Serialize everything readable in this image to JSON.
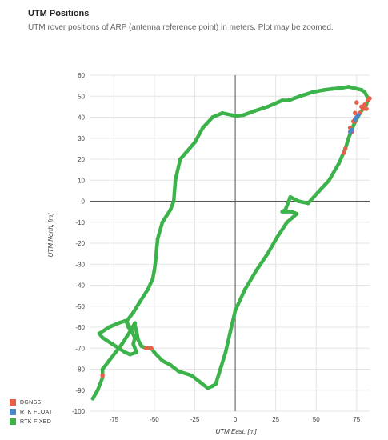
{
  "header": {
    "title": "UTM Positions",
    "subtitle": "UTM rover positions of ARP (antenna reference point) in meters. Plot may be zoomed."
  },
  "colors": {
    "dgnss": "#e8604a",
    "rtk_float": "#4a86c8",
    "rtk_fixed": "#3bb34a",
    "grid": "#e4e4e4",
    "axis": "#555555"
  },
  "chart_data": {
    "type": "scatter",
    "xlabel": "UTM East, [m]",
    "ylabel": "UTM North, [m]",
    "xlim": [
      -90,
      83
    ],
    "ylim": [
      -100,
      60
    ],
    "xticks": [
      -75,
      -50,
      -25,
      0,
      25,
      50,
      75
    ],
    "yticks": [
      60,
      50,
      40,
      30,
      20,
      10,
      0,
      -10,
      -20,
      -30,
      -40,
      -50,
      -60,
      -70,
      -80,
      -90,
      -100
    ],
    "legend_position": "bottom-left",
    "series": [
      {
        "name": "DGNSS",
        "values": [
          [
            -82,
            -83
          ],
          [
            -52,
            -70
          ],
          [
            -55,
            -70
          ],
          [
            75,
            47
          ],
          [
            78,
            45
          ],
          [
            80,
            46
          ],
          [
            82,
            48
          ],
          [
            83,
            49
          ],
          [
            81,
            44
          ],
          [
            77,
            42
          ],
          [
            79,
            44
          ],
          [
            73,
            38
          ],
          [
            72,
            33
          ],
          [
            71,
            35
          ],
          [
            74,
            38
          ],
          [
            68,
            25
          ],
          [
            67,
            23
          ],
          [
            74,
            42
          ]
        ]
      },
      {
        "name": "RTK FLOAT",
        "values": [
          [
            75,
            40
          ],
          [
            74,
            39
          ],
          [
            76,
            41
          ],
          [
            71,
            33
          ],
          [
            72,
            34
          ]
        ]
      },
      {
        "name": "RTK FIXED",
        "values": [
          [
            -88,
            -94
          ],
          [
            -85,
            -90
          ],
          [
            -82,
            -84
          ],
          [
            -82,
            -80
          ],
          [
            -78,
            -76
          ],
          [
            -74,
            -72
          ],
          [
            -70,
            -68
          ],
          [
            -65,
            -62
          ],
          [
            -62,
            -58
          ],
          [
            -64,
            -61
          ],
          [
            -68,
            -57
          ],
          [
            -72,
            -58
          ],
          [
            -78,
            -60
          ],
          [
            -84,
            -63
          ],
          [
            -82,
            -65
          ],
          [
            -76,
            -68
          ],
          [
            -72,
            -70
          ],
          [
            -68,
            -72
          ],
          [
            -65,
            -73
          ],
          [
            -61,
            -72
          ],
          [
            -63,
            -68
          ],
          [
            -62,
            -65
          ],
          [
            -64,
            -62
          ],
          [
            -66,
            -60
          ],
          [
            -67,
            -57
          ],
          [
            -63,
            -53
          ],
          [
            -59,
            -48
          ],
          [
            -54,
            -42
          ],
          [
            -51,
            -37
          ],
          [
            -50,
            -33
          ],
          [
            -49,
            -27
          ],
          [
            -48,
            -18
          ],
          [
            -45,
            -10
          ],
          [
            -40,
            -4
          ],
          [
            -38,
            0
          ],
          [
            -37,
            10
          ],
          [
            -34,
            20
          ],
          [
            -25,
            28
          ],
          [
            -20,
            35
          ],
          [
            -14,
            40
          ],
          [
            -8,
            42
          ],
          [
            -2,
            41
          ],
          [
            0,
            40.5
          ],
          [
            5,
            41
          ],
          [
            12,
            43
          ],
          [
            20,
            45
          ],
          [
            29,
            48
          ],
          [
            33,
            48
          ],
          [
            40,
            50
          ],
          [
            48,
            52
          ],
          [
            55,
            53
          ],
          [
            60,
            53.5
          ],
          [
            66,
            54
          ],
          [
            70,
            54.5
          ],
          [
            78,
            53
          ],
          [
            80,
            52
          ],
          [
            82,
            49
          ],
          [
            81,
            46
          ],
          [
            79,
            44
          ],
          [
            77,
            42
          ],
          [
            75,
            39
          ],
          [
            73,
            36
          ],
          [
            71,
            32
          ],
          [
            70,
            30
          ],
          [
            68,
            25
          ],
          [
            64,
            18
          ],
          [
            58,
            10
          ],
          [
            52,
            5
          ],
          [
            45,
            -1
          ],
          [
            39,
            0
          ],
          [
            34,
            2
          ],
          [
            31,
            -4
          ],
          [
            29,
            -5
          ],
          [
            35,
            -5
          ],
          [
            38,
            -6
          ],
          [
            32,
            -10
          ],
          [
            26,
            -17
          ],
          [
            20,
            -25
          ],
          [
            13,
            -33
          ],
          [
            6,
            -42
          ],
          [
            0,
            -52
          ],
          [
            -3,
            -62
          ],
          [
            -6,
            -72
          ],
          [
            -10,
            -82
          ],
          [
            -12,
            -87
          ],
          [
            -14,
            -88
          ],
          [
            -17,
            -89
          ],
          [
            -22,
            -86
          ],
          [
            -27,
            -83
          ],
          [
            -35,
            -81
          ],
          [
            -40,
            -78
          ],
          [
            -45,
            -76
          ],
          [
            -50,
            -72
          ],
          [
            -52,
            -70
          ],
          [
            -55,
            -70
          ],
          [
            -58,
            -69
          ],
          [
            -60,
            -66
          ],
          [
            -61,
            -62
          ],
          [
            -62,
            -59
          ]
        ]
      }
    ]
  },
  "legend": [
    {
      "label": "DGNSS",
      "color_key": "dgnss"
    },
    {
      "label": "RTK FLOAT",
      "color_key": "rtk_float"
    },
    {
      "label": "RTK FIXED",
      "color_key": "rtk_fixed"
    }
  ]
}
